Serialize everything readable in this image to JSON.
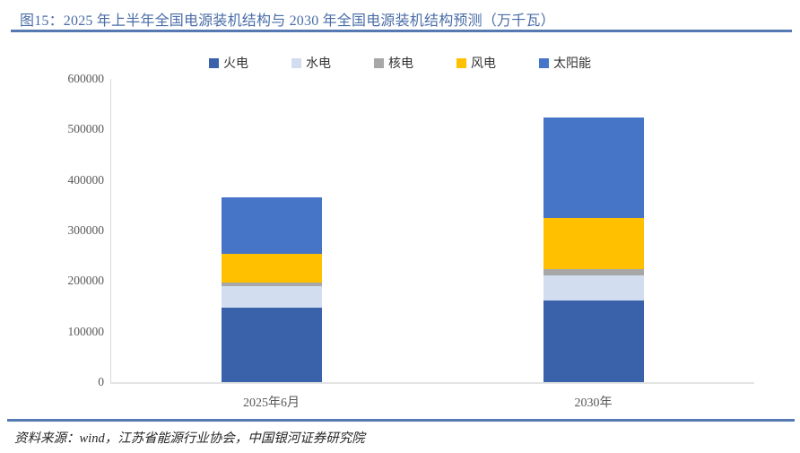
{
  "figure": {
    "title": "图15：2025 年上半年全国电源装机结构与 2030 年全国电源装机结构预测（万千瓦）",
    "source": "资料来源：wind，江苏省能源行业协会，中国银河证券研究院"
  },
  "colors": {
    "title_text": "#4a6da7",
    "rule_blue": "#5579b0",
    "axis_line": "#d9d9d9",
    "tick_text": "#595959",
    "legend_text": "#333333"
  },
  "chart_data": {
    "type": "bar",
    "stacked": true,
    "title": "2025 年上半年全国电源装机结构与 2030 年全国电源装机结构预测（万千瓦）",
    "categories": [
      "2025年6月",
      "2030年"
    ],
    "series": [
      {
        "name": "火电",
        "color": "#3a62ab",
        "values": [
          147000,
          162000
        ]
      },
      {
        "name": "水电",
        "color": "#d3ddf0",
        "values": [
          43000,
          50000
        ]
      },
      {
        "name": "核电",
        "color": "#a7a7a7",
        "values": [
          7000,
          12000
        ]
      },
      {
        "name": "风电",
        "color": "#ffc000",
        "values": [
          57000,
          100000
        ]
      },
      {
        "name": "太阳能",
        "color": "#4674c6",
        "values": [
          112000,
          200000
        ]
      }
    ],
    "totals": [
      366000,
      524000
    ],
    "xlabel": "",
    "ylabel": "",
    "ylim": [
      0,
      600000
    ],
    "ytick_step": 100000,
    "yticks": [
      600000,
      500000,
      400000,
      300000,
      200000,
      100000,
      0
    ],
    "grid": false,
    "legend_position": "top"
  }
}
